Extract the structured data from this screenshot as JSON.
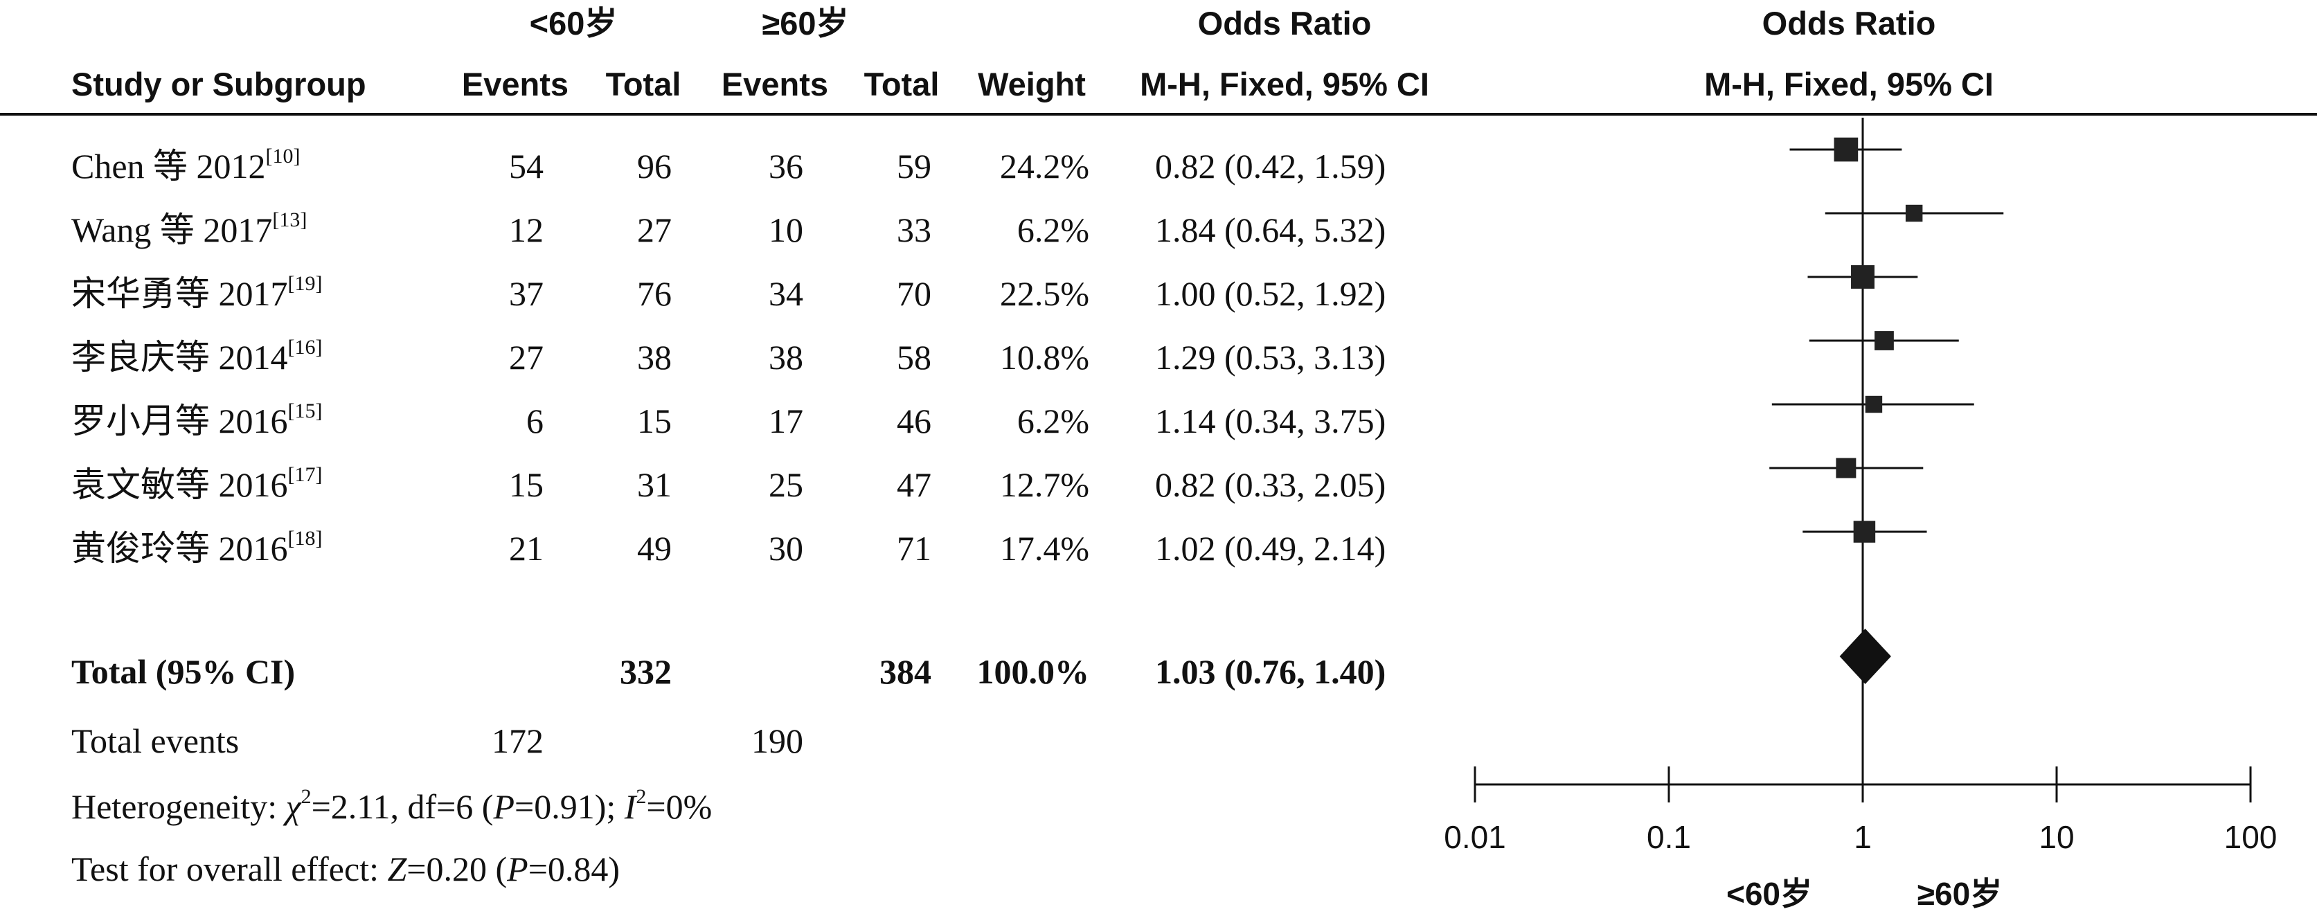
{
  "headers": {
    "group1": "<60岁",
    "group2": "≥60岁",
    "or_title": "Odds Ratio",
    "or_method": "M-H, Fixed, 95% CI",
    "plot_title": "Odds Ratio",
    "plot_method": "M-H, Fixed, 95% CI",
    "study": "Study or Subgroup",
    "events1": "Events",
    "total1": "Total",
    "events2": "Events",
    "total2": "Total",
    "weight": "Weight"
  },
  "studies": [
    {
      "name": "Chen 等 2012",
      "ref": "[10]",
      "e1": "54",
      "t1": "96",
      "e2": "36",
      "t2": "59",
      "weight": "24.2%",
      "ci": "0.82 (0.42, 1.59)"
    },
    {
      "name": "Wang 等 2017",
      "ref": "[13]",
      "e1": "12",
      "t1": "27",
      "e2": "10",
      "t2": "33",
      "weight": "6.2%",
      "ci": "1.84 (0.64, 5.32)"
    },
    {
      "name": "宋华勇等 2017",
      "ref": "[19]",
      "e1": "37",
      "t1": "76",
      "e2": "34",
      "t2": "70",
      "weight": "22.5%",
      "ci": "1.00 (0.52, 1.92)"
    },
    {
      "name": "李良庆等 2014",
      "ref": "[16]",
      "e1": "27",
      "t1": "38",
      "e2": "38",
      "t2": "58",
      "weight": "10.8%",
      "ci": "1.29 (0.53, 3.13)"
    },
    {
      "name": "罗小月等 2016",
      "ref": "[15]",
      "e1": "6",
      "t1": "15",
      "e2": "17",
      "t2": "46",
      "weight": "6.2%",
      "ci": "1.14 (0.34, 3.75)"
    },
    {
      "name": "袁文敏等 2016",
      "ref": "[17]",
      "e1": "15",
      "t1": "31",
      "e2": "25",
      "t2": "47",
      "weight": "12.7%",
      "ci": "0.82 (0.33, 2.05)"
    },
    {
      "name": "黄俊玲等 2016",
      "ref": "[18]",
      "e1": "21",
      "t1": "49",
      "e2": "30",
      "t2": "71",
      "weight": "17.4%",
      "ci": "1.02 (0.49, 2.14)"
    }
  ],
  "total": {
    "label": "Total (95% CI)",
    "t1": "332",
    "t2": "384",
    "weight": "100.0%",
    "ci": "1.03 (0.76, 1.40)"
  },
  "total_events": {
    "label": "Total events",
    "e1": "172",
    "e2": "190"
  },
  "heterogeneity": {
    "prefix": "Heterogeneity: ",
    "chi": "χ",
    "chi_sup": "2",
    "chi_val": "=2.11, df=6 (",
    "p": "P",
    "p_val": "=0.91); ",
    "i": "I",
    "i_sup": "2",
    "i_val": "=0%"
  },
  "overall": {
    "prefix": "Test for overall effect: ",
    "z": "Z",
    "z_val": "=0.20 (",
    "p": "P",
    "p_val": "=0.84)"
  },
  "axis": {
    "ticks": [
      "0.01",
      "0.1",
      "1",
      "10",
      "100"
    ],
    "favors_left": "<60岁",
    "favors_right": "≥60岁"
  },
  "chart_data": {
    "type": "forest",
    "scale": "log",
    "xlim": [
      0.01,
      100
    ],
    "reference_line": 1,
    "studies": [
      {
        "or": 0.82,
        "lo": 0.42,
        "hi": 1.59,
        "weight": 24.2
      },
      {
        "or": 1.84,
        "lo": 0.64,
        "hi": 5.32,
        "weight": 6.2
      },
      {
        "or": 1.0,
        "lo": 0.52,
        "hi": 1.92,
        "weight": 22.5
      },
      {
        "or": 1.29,
        "lo": 0.53,
        "hi": 3.13,
        "weight": 10.8
      },
      {
        "or": 1.14,
        "lo": 0.34,
        "hi": 3.75,
        "weight": 6.2
      },
      {
        "or": 0.82,
        "lo": 0.33,
        "hi": 2.05,
        "weight": 12.7
      },
      {
        "or": 1.02,
        "lo": 0.49,
        "hi": 2.14,
        "weight": 17.4
      }
    ],
    "pooled": {
      "or": 1.03,
      "lo": 0.76,
      "hi": 1.4
    }
  }
}
